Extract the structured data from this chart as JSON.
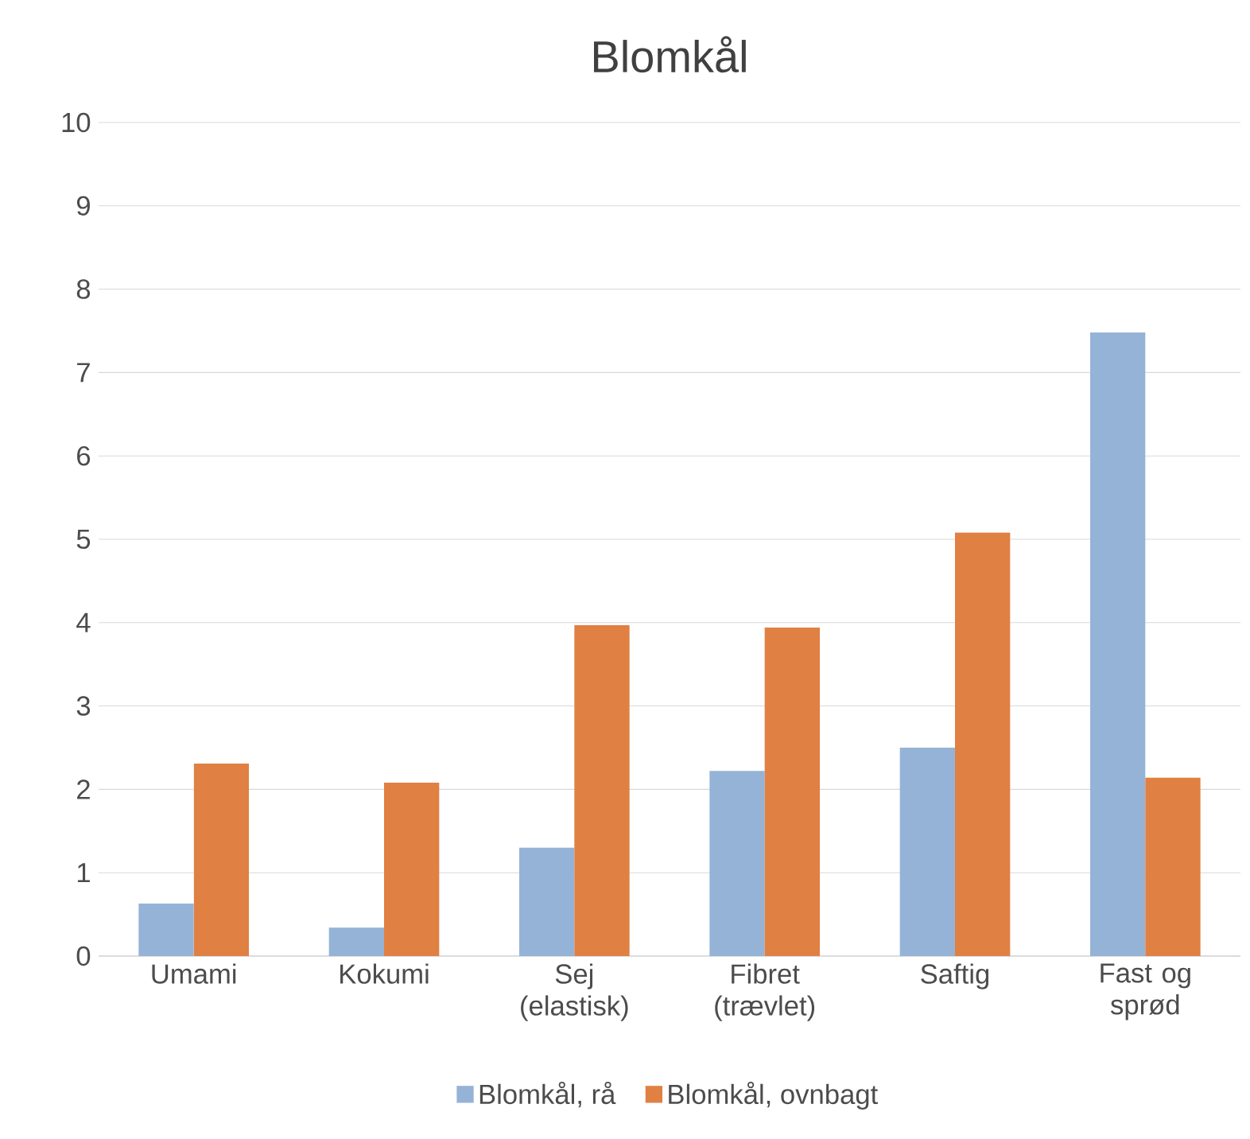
{
  "chart_data": {
    "type": "bar",
    "title": "Blomkål",
    "categories": [
      "Umami",
      "Kokumi",
      "Sej (elastisk)",
      "Fibret (trævlet)",
      "Saftig",
      "Fast og sprød"
    ],
    "series": [
      {
        "name": "Blomkål, rå",
        "color": "#95b3d7",
        "values": [
          0.63,
          0.34,
          1.3,
          2.22,
          2.5,
          7.48
        ]
      },
      {
        "name": "Blomkål, ovnbagt",
        "color": "#e08043",
        "values": [
          2.31,
          2.08,
          3.97,
          3.94,
          5.08,
          2.14
        ]
      }
    ],
    "ylim": [
      0,
      10
    ],
    "yticks": [
      0,
      1,
      2,
      3,
      4,
      5,
      6,
      7,
      8,
      9,
      10
    ],
    "grid": "y",
    "legend": "bottom"
  }
}
